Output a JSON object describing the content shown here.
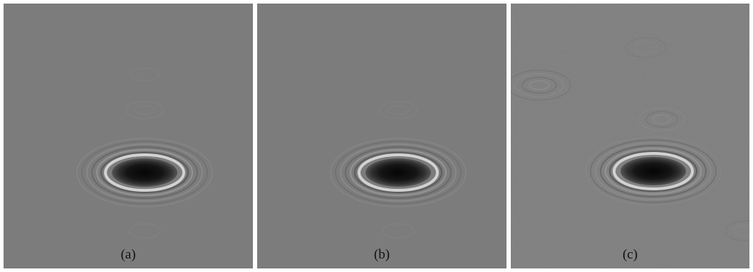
{
  "panels": [
    {
      "id": "a",
      "label": "(a)"
    },
    {
      "id": "b",
      "label": "(b)"
    },
    {
      "id": "c",
      "label": "(c)"
    }
  ],
  "colors": {
    "background": "#7c7c7c",
    "spot_center": "#0d0d0d",
    "ring_light": "#d0d0d0",
    "ring_dark": "#3a3a3a"
  }
}
